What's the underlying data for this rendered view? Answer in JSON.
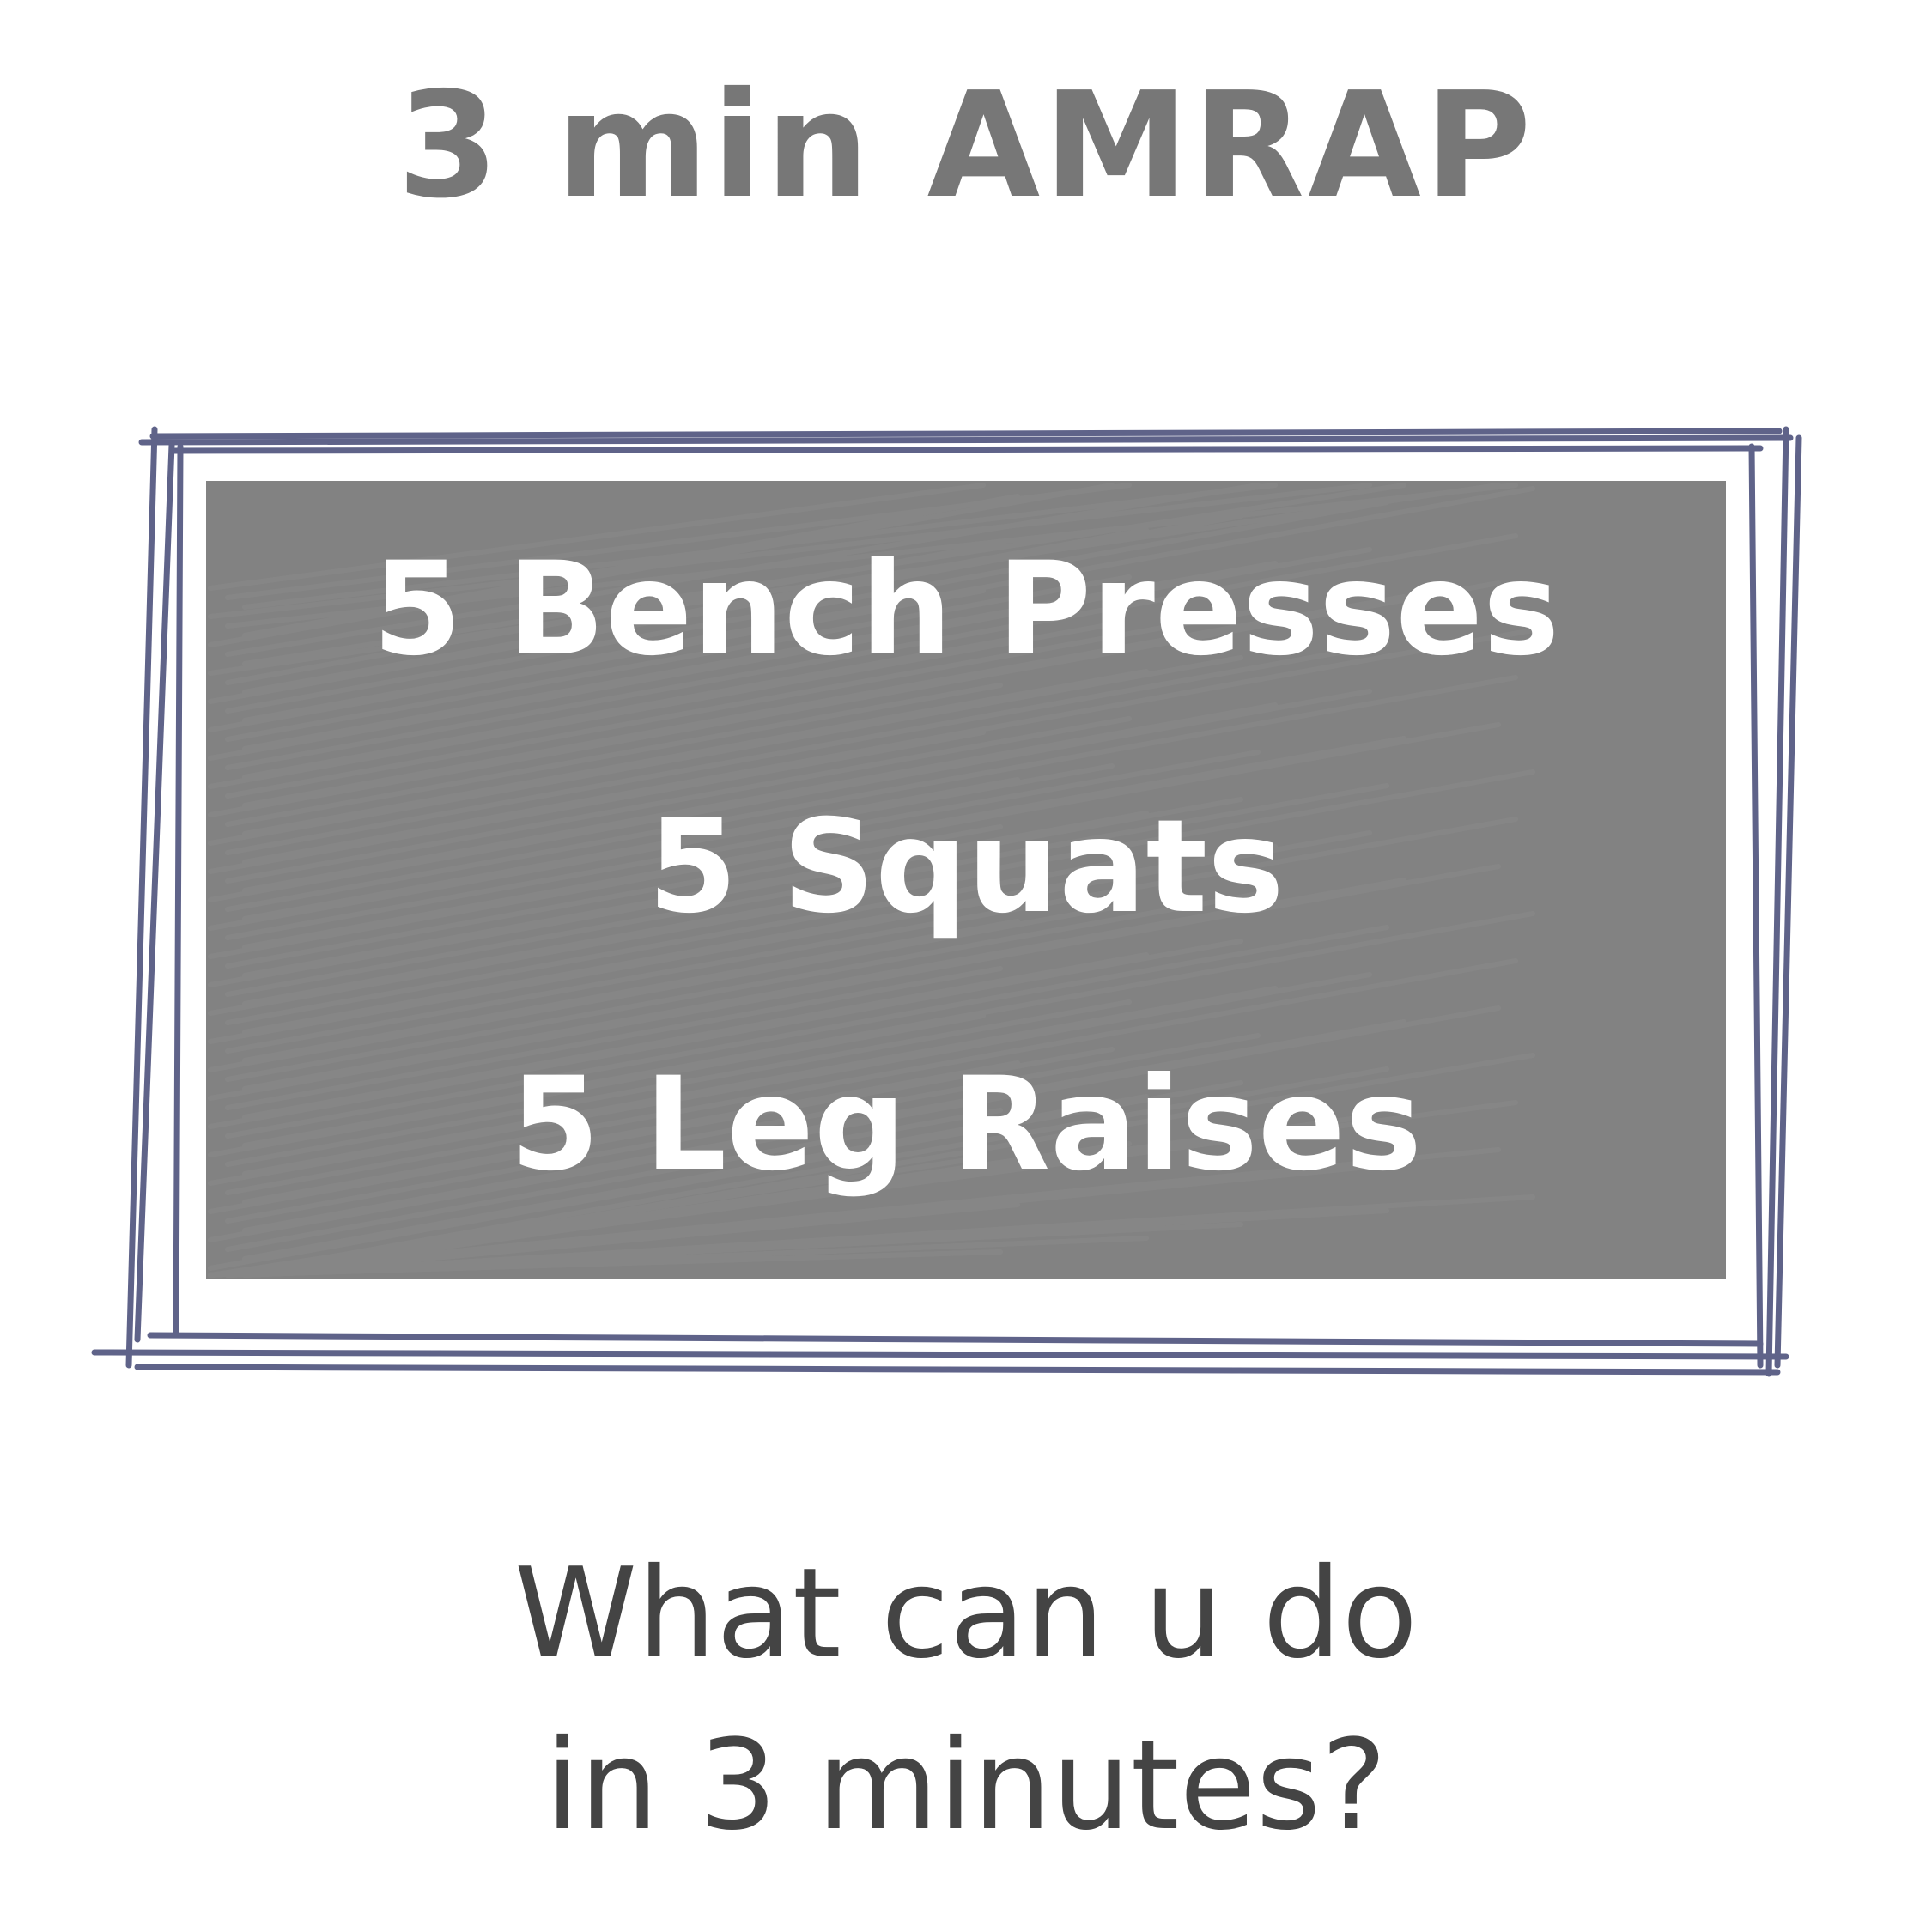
{
  "title": "3 min AMRAP",
  "workout": {
    "items": [
      "5 Bench Presses",
      "5 Squats",
      "5 Leg Raises"
    ]
  },
  "question": {
    "line1": "What can u do",
    "line2": "in 3 minutes?"
  },
  "colors": {
    "title": "#777777",
    "frame": "#5f6389",
    "scribble_fill": "#777777",
    "workout_text": "#ffffff",
    "question_text": "#444444",
    "background": "#ffffff"
  }
}
